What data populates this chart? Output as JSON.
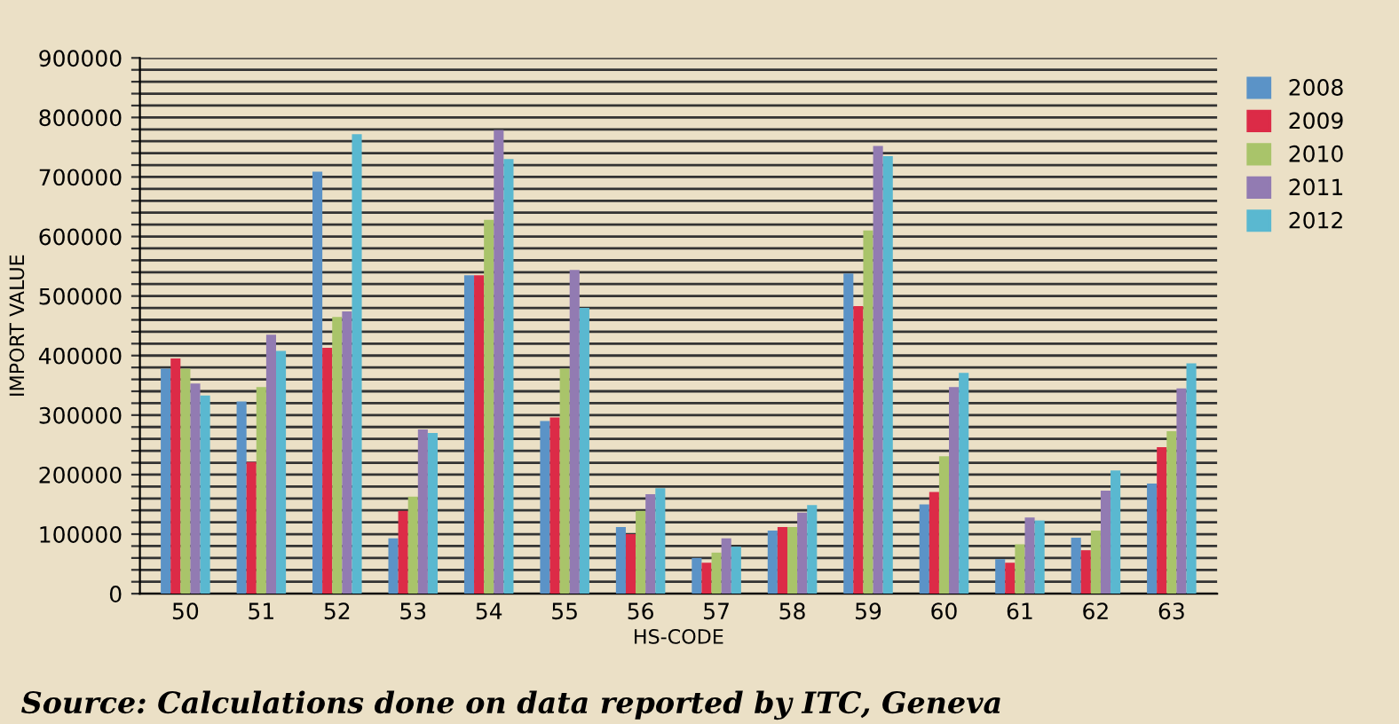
{
  "chart_data": {
    "type": "bar",
    "xlabel": "HS-CODE",
    "ylabel": "IMPORT VALUE",
    "categories": [
      "50",
      "51",
      "52",
      "53",
      "54",
      "55",
      "56",
      "57",
      "58",
      "59",
      "60",
      "61",
      "62",
      "63"
    ],
    "series": [
      {
        "name": "2008",
        "color": "#5b93c7",
        "values": [
          378000,
          323000,
          709000,
          93000,
          535000,
          290000,
          112000,
          60000,
          106000,
          538000,
          150000,
          58000,
          94000,
          185000
        ]
      },
      {
        "name": "2009",
        "color": "#dc2b47",
        "values": [
          395000,
          221000,
          413000,
          139000,
          535000,
          296000,
          100000,
          52000,
          112000,
          483000,
          171000,
          52000,
          73000,
          246000
        ]
      },
      {
        "name": "2010",
        "color": "#a9c46a",
        "values": [
          378000,
          347000,
          465000,
          163000,
          628000,
          378000,
          139000,
          69000,
          112000,
          610000,
          231000,
          83000,
          106000,
          273000
        ]
      },
      {
        "name": "2011",
        "color": "#927bb2",
        "values": [
          353000,
          435000,
          474000,
          276000,
          779000,
          544000,
          167000,
          93000,
          136000,
          752000,
          347000,
          128000,
          173000,
          345000
        ]
      },
      {
        "name": "2012",
        "color": "#5ab8d0",
        "values": [
          333000,
          408000,
          772000,
          270000,
          730000,
          480000,
          177000,
          79000,
          149000,
          735000,
          371000,
          123000,
          207000,
          387000
        ]
      }
    ],
    "ylim": [
      0,
      900000
    ],
    "yticks": [
      0,
      {
        "value": 20000,
        "label": null
      },
      {
        "value": 40000,
        "label": null
      },
      {
        "value": 60000,
        "label": null
      },
      {
        "value": 80000,
        "label": null
      },
      100000,
      {
        "value": 120000,
        "label": null
      },
      {
        "value": 140000,
        "label": null
      },
      {
        "value": 160000,
        "label": null
      },
      {
        "value": 180000,
        "label": null
      },
      200000,
      {
        "value": 220000,
        "label": null
      },
      {
        "value": 240000,
        "label": null
      },
      {
        "value": 260000,
        "label": null
      },
      {
        "value": 280000,
        "label": null
      },
      300000,
      {
        "value": 320000,
        "label": null
      },
      {
        "value": 340000,
        "label": null
      },
      {
        "value": 360000,
        "label": null
      },
      {
        "value": 380000,
        "label": null
      },
      400000,
      {
        "value": 420000,
        "label": null
      },
      {
        "value": 440000,
        "label": null
      },
      {
        "value": 460000,
        "label": null
      },
      {
        "value": 480000,
        "label": null
      },
      500000,
      {
        "value": 520000,
        "label": null
      },
      {
        "value": 540000,
        "label": null
      },
      {
        "value": 560000,
        "label": null
      },
      {
        "value": 580000,
        "label": null
      },
      600000,
      {
        "value": 620000,
        "label": null
      },
      {
        "value": 640000,
        "label": null
      },
      {
        "value": 660000,
        "label": null
      },
      {
        "value": 680000,
        "label": null
      },
      700000,
      {
        "value": 720000,
        "label": null
      },
      {
        "value": 740000,
        "label": null
      },
      {
        "value": 760000,
        "label": null
      },
      {
        "value": 780000,
        "label": null
      },
      800000,
      {
        "value": 820000,
        "label": null
      },
      {
        "value": 840000,
        "label": null
      },
      {
        "value": 860000,
        "label": null
      },
      {
        "value": 880000,
        "label": null
      },
      900000
    ],
    "grid": "y",
    "legend": "right",
    "annotations": [
      "Source: Calculations done on data reported by ITC, Geneva"
    ]
  }
}
